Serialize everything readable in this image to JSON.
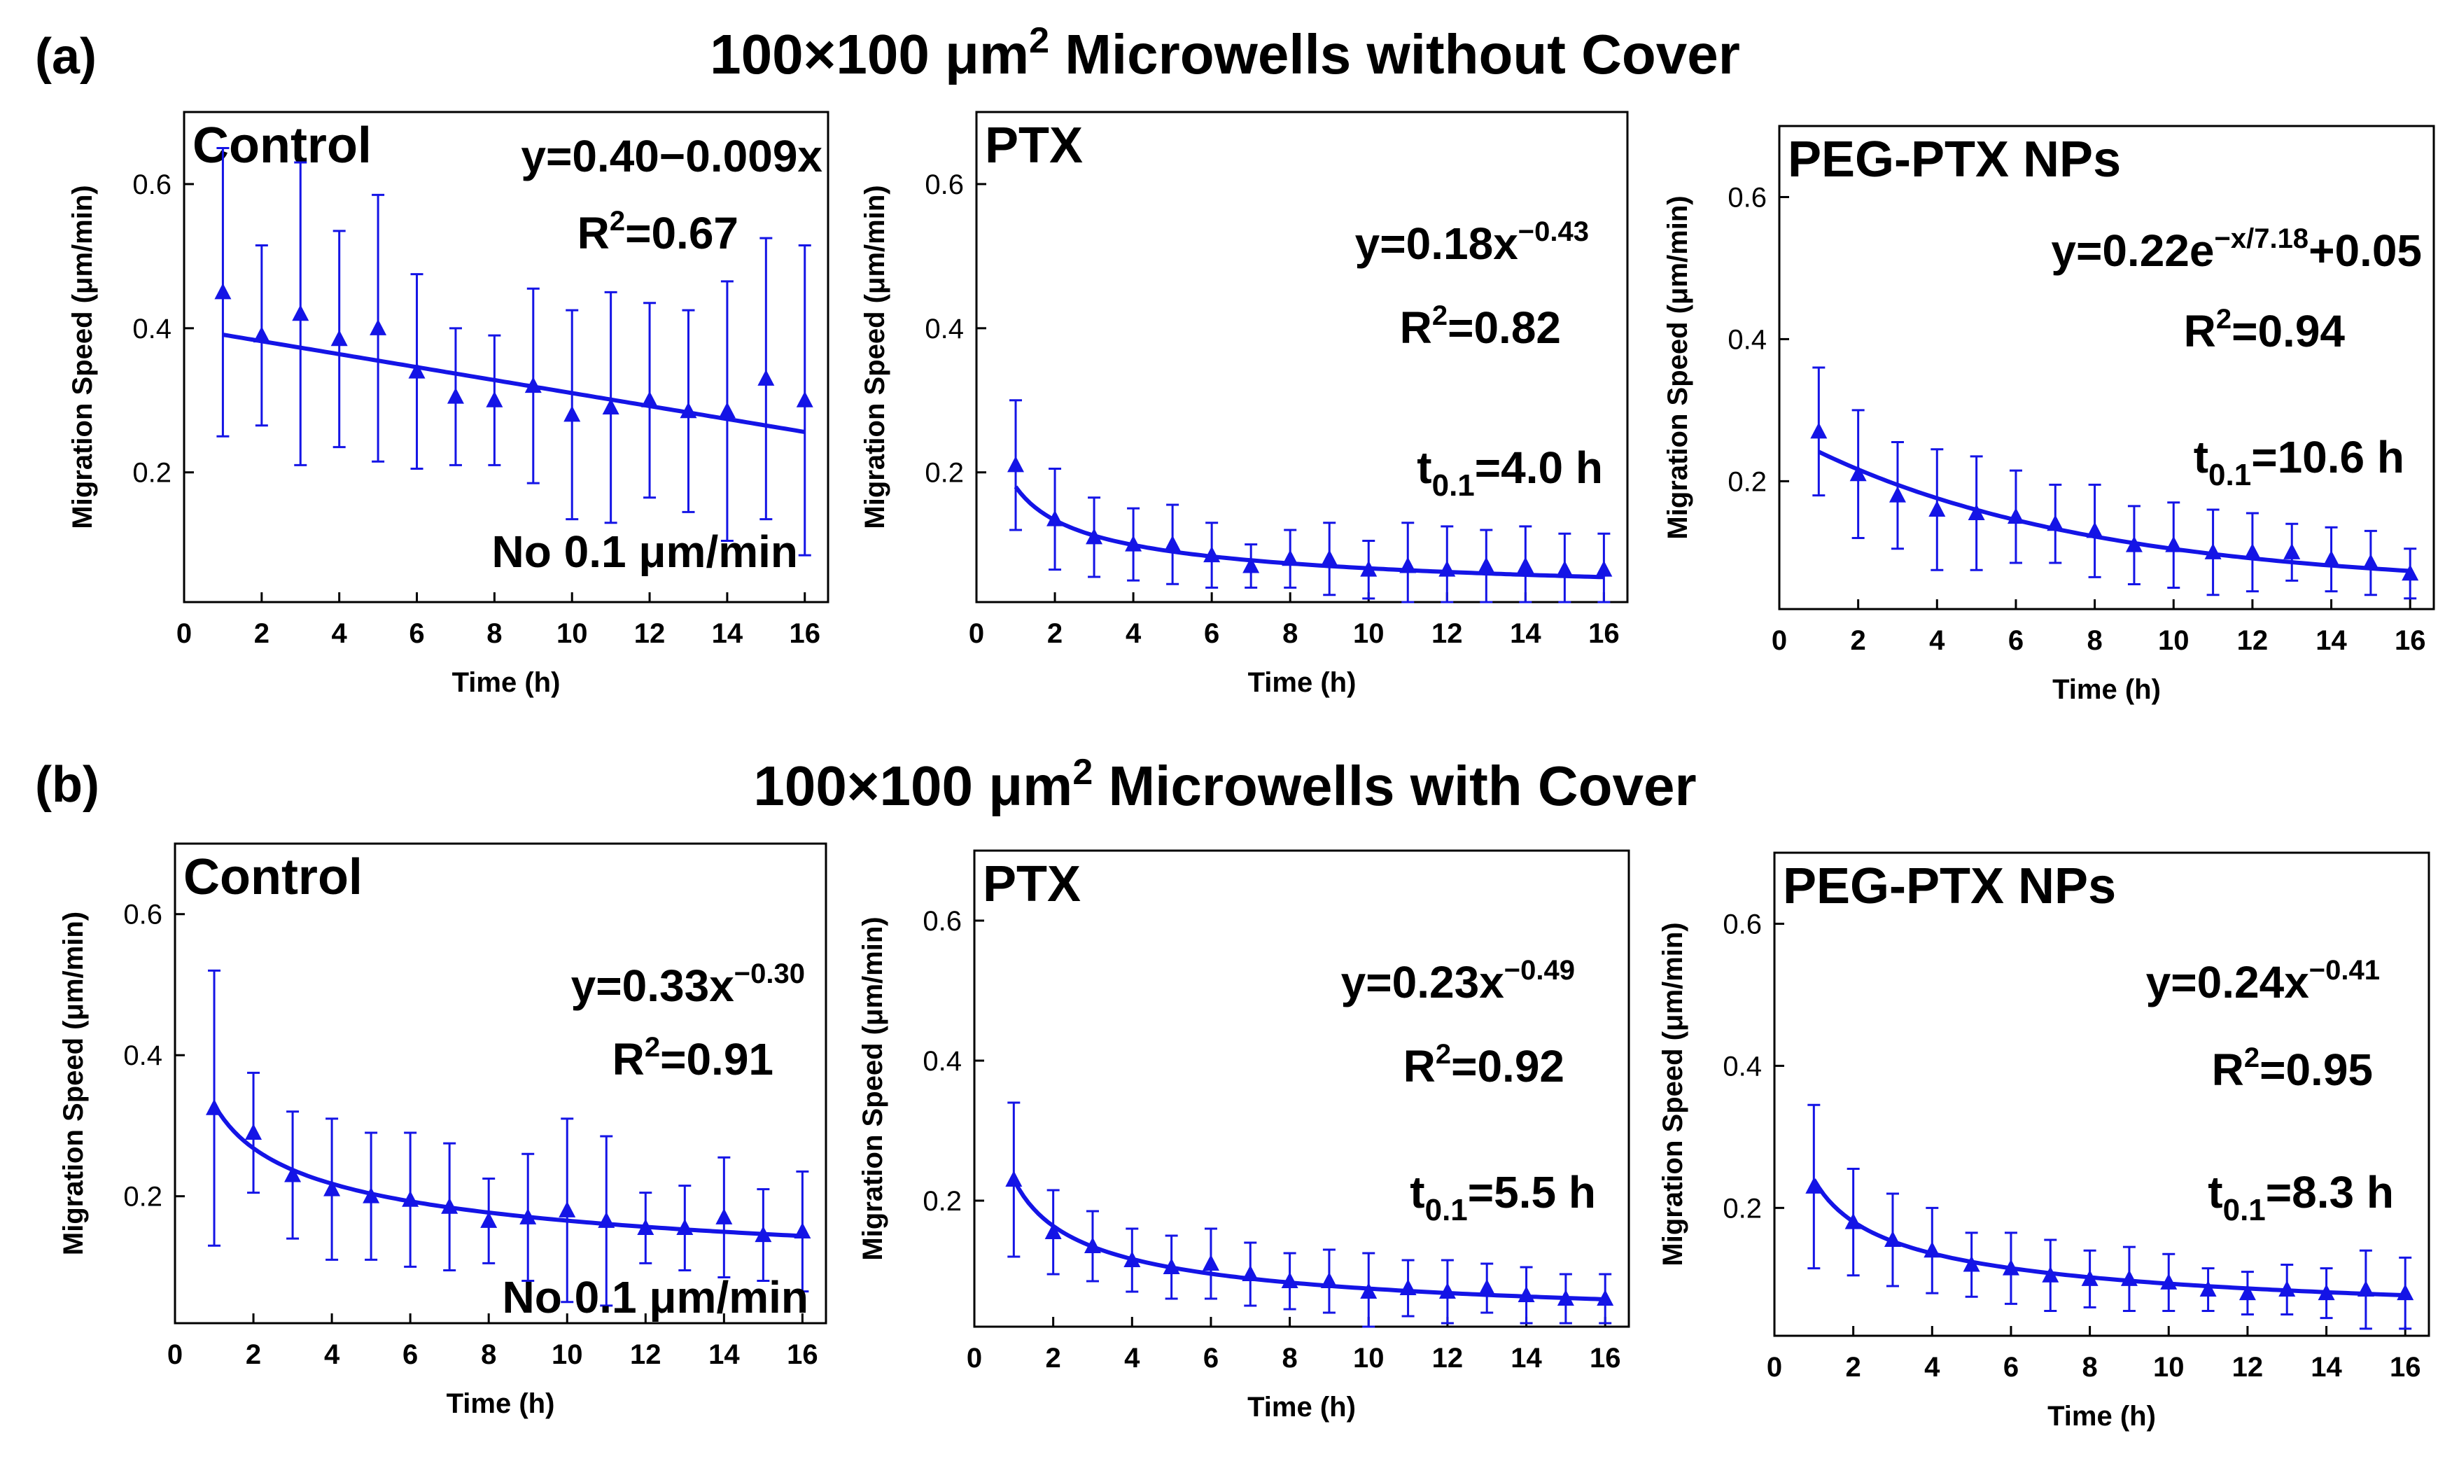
{
  "figure": {
    "row_a": {
      "label": "(a)",
      "title_pre": "100×100 μm",
      "title_sup": "2",
      "title_post": " Microwells without Cover"
    },
    "row_b": {
      "label": "(b)",
      "title_pre": "100×100 μm",
      "title_sup": "2",
      "title_post": " Microwells with Cover"
    }
  },
  "axis_text": {
    "xlabel": "Time (h)",
    "ylabel": "Migration Speed (μm/min)"
  },
  "colors": {
    "series": "#1414e6",
    "text": "#000000",
    "axes": "#000000"
  },
  "chart_data": [
    {
      "type": "scatter",
      "panel": "a-control",
      "title": "Control",
      "xlabel": "Time (h)",
      "ylabel": "Migration Speed (μm/min)",
      "xlim": [
        0,
        16.6
      ],
      "ylim": [
        0,
        0.7
      ],
      "ylim_plot": [
        0.02,
        0.7
      ],
      "xticks": [
        0,
        2,
        4,
        6,
        8,
        10,
        12,
        14,
        16
      ],
      "yticks": [
        0.2,
        0.4,
        0.6
      ],
      "x": [
        1,
        2,
        3,
        4,
        5,
        6,
        7,
        8,
        9,
        10,
        11,
        12,
        13,
        14,
        15,
        16
      ],
      "y": [
        0.45,
        0.39,
        0.42,
        0.385,
        0.4,
        0.34,
        0.305,
        0.3,
        0.32,
        0.28,
        0.29,
        0.3,
        0.285,
        0.285,
        0.33,
        0.3
      ],
      "yerr": [
        0.2,
        0.125,
        0.21,
        0.15,
        0.185,
        0.135,
        0.095,
        0.09,
        0.135,
        0.145,
        0.16,
        0.135,
        0.14,
        0.18,
        0.195,
        0.215
      ],
      "fit": {
        "form": "linear",
        "a": 0.4,
        "b": -0.009
      },
      "annotations": [
        {
          "text": "y=0.40−0.009x",
          "pos": "top-right"
        },
        {
          "text": "R",
          "sup": "2",
          "tail": "=0.67"
        },
        {
          "text": "No 0.1 μm/min",
          "pos": "bottom-right"
        }
      ]
    },
    {
      "type": "scatter",
      "panel": "a-ptx",
      "title": "PTX",
      "xlabel": "Time (h)",
      "ylabel": "Migration Speed (μm/min)",
      "xlim": [
        0,
        16.6
      ],
      "ylim": [
        0,
        0.7
      ],
      "ylim_plot": [
        0.02,
        0.7
      ],
      "xticks": [
        0,
        2,
        4,
        6,
        8,
        10,
        12,
        14,
        16
      ],
      "yticks": [
        0.2,
        0.4,
        0.6
      ],
      "x": [
        1,
        2,
        3,
        4,
        5,
        6,
        7,
        8,
        9,
        10,
        11,
        12,
        13,
        14,
        15,
        16
      ],
      "y": [
        0.21,
        0.135,
        0.11,
        0.1,
        0.1,
        0.085,
        0.07,
        0.08,
        0.08,
        0.065,
        0.07,
        0.065,
        0.07,
        0.07,
        0.065,
        0.065
      ],
      "yerr": [
        0.09,
        0.07,
        0.055,
        0.05,
        0.055,
        0.045,
        0.03,
        0.04,
        0.05,
        0.04,
        0.06,
        0.06,
        0.05,
        0.055,
        0.05,
        0.05
      ],
      "fit": {
        "form": "power",
        "a": 0.18,
        "b": -0.43
      },
      "annotations": [
        {
          "text": "y=0.18x",
          "sup": "−0.43"
        },
        {
          "text": "R",
          "sup": "2",
          "tail": "=0.82"
        },
        {
          "text": "t",
          "sub": "0.1",
          "tail": "=4.0 h"
        }
      ]
    },
    {
      "type": "scatter",
      "panel": "a-peg",
      "title": "PEG-PTX NPs",
      "xlabel": "Time (h)",
      "ylabel": "Migration Speed (μm/min)",
      "xlim": [
        0,
        16.6
      ],
      "ylim": [
        0,
        0.7
      ],
      "ylim_plot": [
        0.02,
        0.7
      ],
      "xticks": [
        0,
        2,
        4,
        6,
        8,
        10,
        12,
        14,
        16
      ],
      "yticks": [
        0.2,
        0.4,
        0.6
      ],
      "x": [
        1,
        2,
        3,
        4,
        5,
        6,
        7,
        8,
        9,
        10,
        11,
        12,
        13,
        14,
        15,
        16
      ],
      "y": [
        0.27,
        0.21,
        0.18,
        0.16,
        0.155,
        0.15,
        0.14,
        0.13,
        0.11,
        0.11,
        0.1,
        0.1,
        0.1,
        0.09,
        0.085,
        0.07
      ],
      "yerr": [
        0.09,
        0.09,
        0.075,
        0.085,
        0.08,
        0.065,
        0.055,
        0.065,
        0.055,
        0.06,
        0.06,
        0.055,
        0.04,
        0.045,
        0.045,
        0.035
      ],
      "fit": {
        "form": "exp",
        "a": 0.22,
        "t": 7.18,
        "c": 0.05
      },
      "annotations": [
        {
          "text": "y=0.22e",
          "sup": "−x/7.18",
          "tail": "+0.05"
        },
        {
          "text": "R",
          "sup": "2",
          "tail": "=0.94"
        },
        {
          "text": "t",
          "sub": "0.1",
          "tail": "=10.6 h"
        }
      ]
    },
    {
      "type": "scatter",
      "panel": "b-control",
      "title": "Control",
      "xlabel": "Time (h)",
      "ylabel": "Migration Speed (μm/min)",
      "xlim": [
        0,
        16.6
      ],
      "ylim": [
        0,
        0.7
      ],
      "ylim_plot": [
        0.02,
        0.7
      ],
      "xticks": [
        0,
        2,
        4,
        6,
        8,
        10,
        12,
        14,
        16
      ],
      "yticks": [
        0.2,
        0.4,
        0.6
      ],
      "x": [
        1,
        2,
        3,
        4,
        5,
        6,
        7,
        8,
        9,
        10,
        11,
        12,
        13,
        14,
        15,
        16
      ],
      "y": [
        0.325,
        0.29,
        0.23,
        0.21,
        0.2,
        0.195,
        0.185,
        0.165,
        0.17,
        0.18,
        0.165,
        0.155,
        0.155,
        0.17,
        0.145,
        0.15
      ],
      "yerr": [
        0.195,
        0.085,
        0.09,
        0.1,
        0.09,
        0.095,
        0.09,
        0.06,
        0.09,
        0.13,
        0.12,
        0.05,
        0.06,
        0.085,
        0.065,
        0.085
      ],
      "fit": {
        "form": "power",
        "a": 0.33,
        "b": -0.3
      },
      "annotations": [
        {
          "text": "y=0.33x",
          "sup": "−0.30"
        },
        {
          "text": "R",
          "sup": "2",
          "tail": "=0.91"
        },
        {
          "text": "No 0.1 μm/min",
          "pos": "bottom-right"
        }
      ]
    },
    {
      "type": "scatter",
      "panel": "b-ptx",
      "title": "PTX",
      "xlabel": "Time (h)",
      "ylabel": "Migration Speed (μm/min)",
      "xlim": [
        0,
        16.6
      ],
      "ylim": [
        0,
        0.7
      ],
      "ylim_plot": [
        0.02,
        0.7
      ],
      "xticks": [
        0,
        2,
        4,
        6,
        8,
        10,
        12,
        14,
        16
      ],
      "yticks": [
        0.2,
        0.4,
        0.6
      ],
      "x": [
        1,
        2,
        3,
        4,
        5,
        6,
        7,
        8,
        9,
        10,
        11,
        12,
        13,
        14,
        15,
        16
      ],
      "y": [
        0.23,
        0.155,
        0.135,
        0.115,
        0.105,
        0.11,
        0.095,
        0.085,
        0.085,
        0.07,
        0.075,
        0.07,
        0.075,
        0.065,
        0.06,
        0.06
      ],
      "yerr": [
        0.11,
        0.06,
        0.05,
        0.045,
        0.045,
        0.05,
        0.045,
        0.04,
        0.045,
        0.055,
        0.04,
        0.045,
        0.035,
        0.04,
        0.035,
        0.035
      ],
      "fit": {
        "form": "power",
        "a": 0.23,
        "b": -0.49
      },
      "annotations": [
        {
          "text": "y=0.23x",
          "sup": "−0.49"
        },
        {
          "text": "R",
          "sup": "2",
          "tail": "=0.92"
        },
        {
          "text": "t",
          "sub": "0.1",
          "tail": "=5.5 h"
        }
      ]
    },
    {
      "type": "scatter",
      "panel": "b-peg",
      "title": "PEG-PTX NPs",
      "xlabel": "Time (h)",
      "ylabel": "Migration Speed (μm/min)",
      "xlim": [
        0,
        16.6
      ],
      "ylim": [
        0,
        0.7
      ],
      "ylim_plot": [
        0.02,
        0.7
      ],
      "xticks": [
        0,
        2,
        4,
        6,
        8,
        10,
        12,
        14,
        16
      ],
      "yticks": [
        0.2,
        0.4,
        0.6
      ],
      "x": [
        1,
        2,
        3,
        4,
        5,
        6,
        7,
        8,
        9,
        10,
        11,
        12,
        13,
        14,
        15,
        16
      ],
      "y": [
        0.23,
        0.18,
        0.155,
        0.14,
        0.12,
        0.115,
        0.105,
        0.1,
        0.1,
        0.095,
        0.085,
        0.08,
        0.085,
        0.08,
        0.085,
        0.08
      ],
      "yerr": [
        0.115,
        0.075,
        0.065,
        0.06,
        0.045,
        0.05,
        0.05,
        0.04,
        0.045,
        0.04,
        0.03,
        0.03,
        0.035,
        0.035,
        0.055,
        0.05
      ],
      "fit": {
        "form": "power",
        "a": 0.24,
        "b": -0.41
      },
      "annotations": [
        {
          "text": "y=0.24x",
          "sup": "−0.41"
        },
        {
          "text": "R",
          "sup": "2",
          "tail": "=0.95"
        },
        {
          "text": "t",
          "sub": "0.1",
          "tail": "=8.3 h"
        }
      ]
    }
  ]
}
